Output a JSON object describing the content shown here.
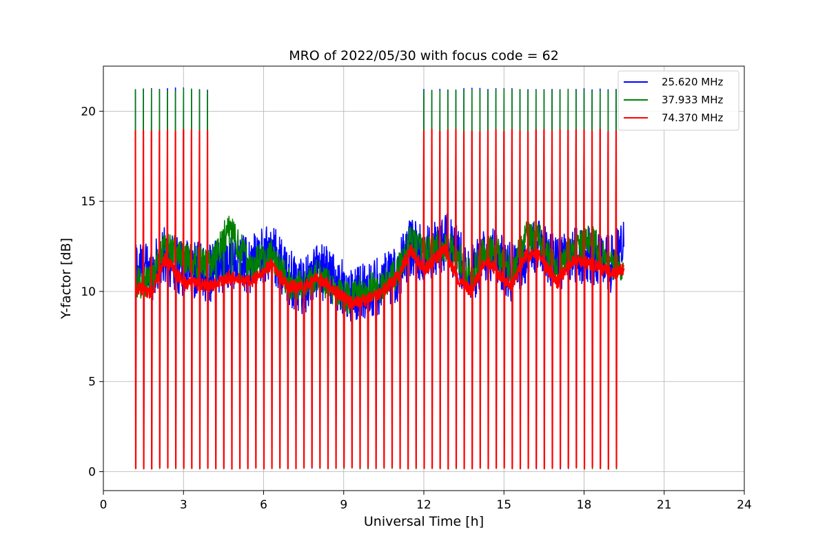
{
  "chart_data": {
    "type": "line",
    "title": "MRO of 2022/05/30 with focus code = 62",
    "xlabel": "Universal Time [h]",
    "ylabel": "Y-factor [dB]",
    "xlim": [
      0,
      24
    ],
    "ylim": [
      -1.05,
      22.5
    ],
    "xticks": [
      0,
      3,
      6,
      9,
      12,
      15,
      18,
      21,
      24
    ],
    "yticks": [
      0,
      5,
      10,
      15,
      20
    ],
    "xtick_labels": [
      "0",
      "3",
      "6",
      "9",
      "12",
      "15",
      "18",
      "21",
      "24"
    ],
    "ytick_labels": [
      "0",
      "5",
      "10",
      "15",
      "20"
    ],
    "grid": true,
    "legend_position": "top-right",
    "x_start": 1.2,
    "x_end": 19.5,
    "calibration_spike_period_h": 0.3,
    "spike_low_value": 0.15,
    "series": [
      {
        "name": "25.620 MHz",
        "color": "#0000ff",
        "spike_peak": 21.3,
        "noise_amplitude": 1.6,
        "baseline_x": [
          1.2,
          1.8,
          2.3,
          3.0,
          4.0,
          4.7,
          5.5,
          6.3,
          6.9,
          7.5,
          8.0,
          8.5,
          9.2,
          9.8,
          10.3,
          11.0,
          11.5,
          12.0,
          12.8,
          13.3,
          13.8,
          14.3,
          14.8,
          15.3,
          15.8,
          16.3,
          17.0,
          17.6,
          18.3,
          19.0,
          19.5
        ],
        "baseline_y": [
          11.5,
          11.0,
          12.0,
          11.3,
          11.0,
          11.8,
          11.5,
          12.3,
          10.8,
          10.3,
          11.2,
          10.8,
          9.9,
          10.0,
          10.3,
          11.0,
          12.5,
          12.0,
          12.8,
          12.0,
          11.0,
          12.0,
          11.8,
          11.0,
          12.0,
          12.5,
          11.5,
          12.0,
          12.0,
          11.5,
          12.5
        ]
      },
      {
        "name": "37.933 MHz",
        "color": "#008000",
        "spike_peak": 21.25,
        "noise_amplitude": 0.9,
        "baseline_x": [
          1.2,
          1.8,
          2.3,
          3.0,
          4.0,
          4.7,
          5.5,
          6.3,
          6.9,
          7.5,
          8.0,
          8.5,
          9.2,
          9.8,
          10.3,
          11.0,
          11.5,
          12.0,
          12.8,
          13.3,
          13.8,
          14.3,
          14.8,
          15.3,
          15.8,
          16.3,
          17.0,
          17.6,
          18.3,
          19.0,
          19.5
        ],
        "baseline_y": [
          10.5,
          10.5,
          12.8,
          11.8,
          11.5,
          13.5,
          11.5,
          12.0,
          10.5,
          10.2,
          11.0,
          10.2,
          9.6,
          10.2,
          10.2,
          11.0,
          12.8,
          12.2,
          12.6,
          11.8,
          10.8,
          12.5,
          12.0,
          11.0,
          13.0,
          13.0,
          11.0,
          12.5,
          12.8,
          11.5,
          11.5
        ]
      },
      {
        "name": "74.370 MHz",
        "color": "#ff0000",
        "spike_peak": 19.0,
        "noise_amplitude": 0.35,
        "baseline_x": [
          1.2,
          1.8,
          2.3,
          3.0,
          4.0,
          4.7,
          5.5,
          6.3,
          6.9,
          7.5,
          8.0,
          8.5,
          9.2,
          9.8,
          10.3,
          11.0,
          11.5,
          12.0,
          12.8,
          13.3,
          13.8,
          14.3,
          14.8,
          15.3,
          15.8,
          16.3,
          17.0,
          17.6,
          18.3,
          19.0,
          19.5
        ],
        "baseline_y": [
          10.2,
          9.9,
          11.8,
          10.5,
          10.3,
          10.8,
          10.5,
          11.5,
          10.3,
          10.2,
          10.8,
          10.3,
          9.4,
          9.5,
          9.8,
          10.8,
          12.3,
          11.2,
          12.3,
          10.6,
          10.0,
          11.8,
          11.0,
          10.3,
          12.0,
          12.0,
          10.5,
          11.8,
          11.5,
          11.0,
          11.2
        ]
      }
    ]
  }
}
